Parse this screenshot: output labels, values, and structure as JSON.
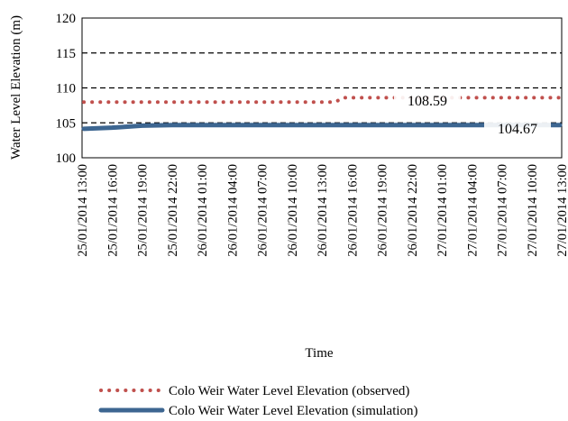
{
  "chart_data": {
    "type": "line",
    "ylabel": "Water Level Elevation (m)",
    "xlabel": "Time",
    "ylim": [
      100,
      120
    ],
    "yticks": [
      100,
      105,
      110,
      115,
      120
    ],
    "grid": "horizontal-dashed",
    "legend_position": "bottom",
    "x": [
      "25/01/2014 13:00",
      "25/01/2014 16:00",
      "25/01/2014 19:00",
      "25/01/2014 22:00",
      "26/01/2014 01:00",
      "26/01/2014 04:00",
      "26/01/2014 07:00",
      "26/01/2014 10:00",
      "26/01/2014 13:00",
      "26/01/2014 16:00",
      "26/01/2014 19:00",
      "26/01/2014 22:00",
      "27/01/2014 01:00",
      "27/01/2014 04:00",
      "27/01/2014 07:00",
      "27/01/2014 10:00",
      "27/01/2014 13:00"
    ],
    "series": [
      {
        "name": "Colo Weir Water Level Elevation (observed)",
        "color": "#c0504d",
        "style": "dotted",
        "values": [
          107.97,
          107.97,
          107.97,
          107.97,
          107.97,
          107.97,
          107.97,
          107.97,
          107.97,
          108.59,
          108.59,
          108.59,
          108.59,
          108.59,
          108.59,
          108.59,
          108.59
        ],
        "data_label": "108.59"
      },
      {
        "name": "Colo Weir Water Level Elevation (simulation)",
        "color": "#3d6691",
        "style": "solid",
        "values": [
          104.15,
          104.3,
          104.6,
          104.67,
          104.67,
          104.67,
          104.67,
          104.67,
          104.67,
          104.67,
          104.67,
          104.67,
          104.67,
          104.67,
          104.67,
          104.67,
          104.67
        ],
        "data_label": "104.67"
      }
    ]
  }
}
